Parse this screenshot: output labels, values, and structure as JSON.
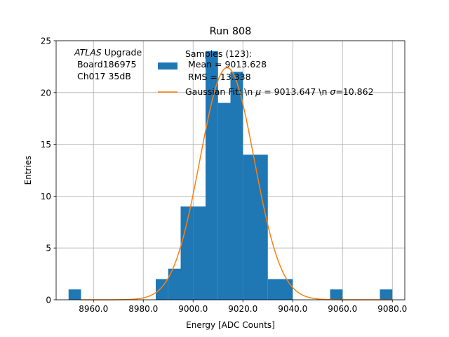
{
  "chart_data": {
    "type": "bar",
    "title": "Run 808",
    "xlabel": "Energy [ADC Counts]",
    "ylabel": "Entries",
    "xlim": [
      8945.0,
      9085.0
    ],
    "ylim": [
      0,
      25
    ],
    "x_ticks": [
      8960.0,
      8980.0,
      9000.0,
      9020.0,
      9040.0,
      9060.0,
      9080.0
    ],
    "x_tick_labels": [
      "8960.0",
      "8980.0",
      "9000.0",
      "9020.0",
      "9040.0",
      "9060.0",
      "9080.0"
    ],
    "y_ticks": [
      0,
      5,
      10,
      15,
      20,
      25
    ],
    "y_tick_labels": [
      "0",
      "5",
      "10",
      "15",
      "20",
      "25"
    ],
    "grid": true,
    "legend_position": "top-right",
    "annotation": {
      "line1_italic": "ATLAS",
      "line1_rest": " Upgrade",
      "line2": " Board186975",
      "line3": " Ch017 35dB"
    },
    "series": [
      {
        "kind": "histogram",
        "color": "#1f77b4",
        "legend_lines": [
          "Samples (123):",
          " Mean = 9013.628",
          " RMS = 13.338"
        ],
        "bins": [
          {
            "x0": 8950.0,
            "x1": 8955.0,
            "count": 1
          },
          {
            "x0": 8985.0,
            "x1": 8990.0,
            "count": 2
          },
          {
            "x0": 8990.0,
            "x1": 8995.0,
            "count": 3
          },
          {
            "x0": 8995.0,
            "x1": 9000.0,
            "count": 9
          },
          {
            "x0": 9000.0,
            "x1": 9005.0,
            "count": 9
          },
          {
            "x0": 9005.0,
            "x1": 9010.0,
            "count": 24
          },
          {
            "x0": 9010.0,
            "x1": 9015.0,
            "count": 19
          },
          {
            "x0": 9015.0,
            "x1": 9020.0,
            "count": 22
          },
          {
            "x0": 9020.0,
            "x1": 9025.0,
            "count": 14
          },
          {
            "x0": 9025.0,
            "x1": 9030.0,
            "count": 14
          },
          {
            "x0": 9030.0,
            "x1": 9035.0,
            "count": 2
          },
          {
            "x0": 9035.0,
            "x1": 9040.0,
            "count": 2
          },
          {
            "x0": 9055.0,
            "x1": 9060.0,
            "count": 1
          },
          {
            "x0": 9075.0,
            "x1": 9080.0,
            "count": 1
          }
        ]
      },
      {
        "kind": "line",
        "color": "#ff7f0e",
        "legend_parts": [
          "Gaussian Fit: \\n ",
          "μ",
          " = 9013.647 \\n ",
          "σ",
          "=10.862"
        ],
        "mu": 9013.647,
        "sigma": 10.862,
        "amplitude": 22.4,
        "x_range": [
          8955.0,
          9080.0
        ]
      }
    ]
  }
}
